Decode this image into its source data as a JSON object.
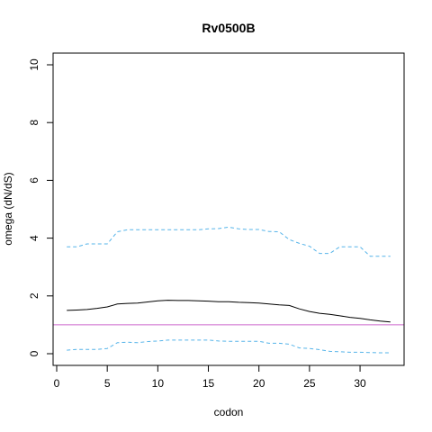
{
  "chart_data": {
    "type": "line",
    "title": "Rv0500B",
    "xlabel": "codon",
    "ylabel": "omega (dN/dS)",
    "xlim": [
      0,
      34
    ],
    "ylim": [
      0,
      10
    ],
    "x_ticks": [
      0,
      5,
      10,
      15,
      20,
      25,
      30
    ],
    "y_ticks": [
      0,
      2,
      4,
      6,
      8,
      10
    ],
    "grid": false,
    "reference_line": {
      "y": 1,
      "color": "#cc66cc"
    },
    "x": [
      1,
      2,
      3,
      4,
      5,
      6,
      7,
      8,
      9,
      10,
      11,
      12,
      13,
      14,
      15,
      16,
      17,
      18,
      19,
      20,
      21,
      22,
      23,
      24,
      25,
      26,
      27,
      28,
      29,
      30,
      31,
      32,
      33
    ],
    "series": [
      {
        "style": "solid",
        "color": "#000000",
        "values": [
          1.5,
          1.51,
          1.53,
          1.57,
          1.62,
          1.72,
          1.74,
          1.75,
          1.79,
          1.83,
          1.85,
          1.84,
          1.84,
          1.83,
          1.82,
          1.8,
          1.8,
          1.78,
          1.77,
          1.75,
          1.72,
          1.69,
          1.67,
          1.55,
          1.46,
          1.4,
          1.36,
          1.31,
          1.26,
          1.22,
          1.17,
          1.13,
          1.1
        ]
      },
      {
        "style": "dashed",
        "color": "#56b4e9",
        "values": [
          3.7,
          3.7,
          3.8,
          3.8,
          3.8,
          4.22,
          4.29,
          4.29,
          4.29,
          4.29,
          4.29,
          4.29,
          4.29,
          4.29,
          4.32,
          4.33,
          4.38,
          4.32,
          4.3,
          4.3,
          4.23,
          4.22,
          3.95,
          3.82,
          3.72,
          3.47,
          3.47,
          3.7,
          3.7,
          3.7,
          3.37,
          3.37,
          3.37
        ]
      },
      {
        "style": "dashed",
        "color": "#56b4e9",
        "values": [
          0.12,
          0.15,
          0.15,
          0.15,
          0.18,
          0.38,
          0.4,
          0.38,
          0.42,
          0.44,
          0.47,
          0.47,
          0.47,
          0.47,
          0.47,
          0.44,
          0.43,
          0.43,
          0.43,
          0.43,
          0.36,
          0.36,
          0.33,
          0.2,
          0.18,
          0.14,
          0.08,
          0.07,
          0.05,
          0.05,
          0.04,
          0.03,
          0.03
        ]
      }
    ]
  }
}
